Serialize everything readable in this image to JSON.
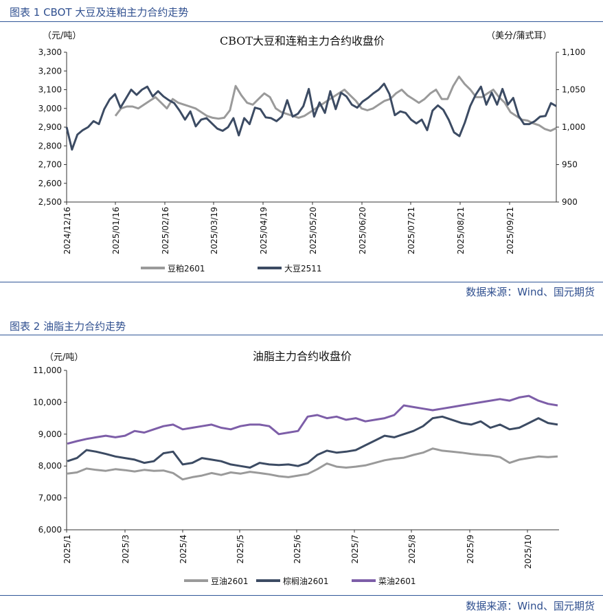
{
  "figure1": {
    "caption": "图表 1 CBOT 大豆及连粕主力合约走势",
    "source": "数据来源：Wind、国元期货",
    "chart_data": {
      "type": "line",
      "title": "CBOT大豆和连粕主力合约收盘价",
      "left_unit": "（元/吨）",
      "right_unit": "（美分/蒲式耳）",
      "left_ylim": [
        2500,
        3300
      ],
      "left_ticks": [
        "2,500",
        "2,600",
        "2,700",
        "2,800",
        "2,900",
        "3,000",
        "3,100",
        "3,200",
        "3,300"
      ],
      "right_ylim": [
        900,
        1100
      ],
      "right_ticks": [
        "900",
        "950",
        "1,000",
        "1,050",
        "1,100"
      ],
      "x_ticks": [
        "2024/12/16",
        "2025/01/16",
        "2025/02/16",
        "2025/03/19",
        "2025/04/19",
        "2025/05/20",
        "2025/06/20",
        "2025/07/21",
        "2025/08/21",
        "2025/09/21"
      ],
      "legend": "bottom",
      "grid": false,
      "series": [
        {
          "name": "豆粕2601",
          "axis": "left",
          "color": "#9a9a9a",
          "values": [
            2960,
            3000,
            3010,
            3010,
            3000,
            3020,
            3040,
            3060,
            3030,
            3000,
            3050,
            3030,
            3020,
            3010,
            3000,
            2980,
            2960,
            2950,
            2945,
            2950,
            2990,
            3120,
            3070,
            3030,
            3020,
            3050,
            3080,
            3060,
            3000,
            2980,
            2970,
            2960,
            2950,
            2960,
            2980,
            3000,
            3020,
            3040,
            3060,
            3080,
            3100,
            3070,
            3040,
            3000,
            2990,
            3000,
            3020,
            3040,
            3050,
            3080,
            3100,
            3070,
            3050,
            3030,
            3050,
            3080,
            3100,
            3050,
            3050,
            3120,
            3170,
            3130,
            3100,
            3060,
            3060,
            3080,
            3100,
            3060,
            3030,
            2980,
            2960,
            2940,
            2935,
            2920,
            2910,
            2890,
            2880,
            2895
          ]
        },
        {
          "name": "大豆2511",
          "axis": "right",
          "color": "#3c4b63",
          "values": [
            1000,
            970,
            990,
            996,
            1000,
            1008,
            1004,
            1024,
            1037,
            1044,
            1026,
            1038,
            1050,
            1043,
            1050,
            1054,
            1041,
            1048,
            1041,
            1036,
            1032,
            1022,
            1010,
            1021,
            1001,
            1010,
            1012,
            1005,
            998,
            995,
            1000,
            1012,
            989,
            1012,
            1004,
            1026,
            1024,
            1013,
            1012,
            1008,
            1014,
            1036,
            1014,
            1018,
            1028,
            1051,
            1014,
            1033,
            1019,
            1048,
            1024,
            1046,
            1041,
            1030,
            1026,
            1034,
            1039,
            1045,
            1050,
            1058,
            1044,
            1016,
            1021,
            1019,
            1010,
            1005,
            1010,
            996,
            1022,
            1029,
            1023,
            1010,
            993,
            988,
            1006,
            1028,
            1043,
            1054,
            1030,
            1046,
            1030,
            1051,
            1030,
            1039,
            1015,
            1004,
            1004,
            1008,
            1014,
            1015,
            1032,
            1028
          ]
        }
      ]
    }
  },
  "figure2": {
    "caption": "图表 2 油脂主力合约走势",
    "source": "数据来源：Wind、国元期货",
    "chart_data": {
      "type": "line",
      "title": "油脂主力合约收盘价",
      "ylabel": "（元/吨）",
      "ylim": [
        6000,
        11000
      ],
      "y_ticks": [
        "6,000",
        "7,000",
        "8,000",
        "9,000",
        "10,000",
        "11,000"
      ],
      "x_ticks": [
        "2025/1",
        "2025/3",
        "2025/4",
        "2025/5",
        "2025/6",
        "2025/7",
        "2025/8",
        "2025/9",
        "2025/10"
      ],
      "legend": "bottom",
      "grid": false,
      "series": [
        {
          "name": "豆油2601",
          "color": "#9a9a9a",
          "values": [
            7760,
            7800,
            7920,
            7880,
            7850,
            7900,
            7870,
            7830,
            7880,
            7850,
            7860,
            7780,
            7580,
            7650,
            7700,
            7780,
            7720,
            7800,
            7760,
            7820,
            7780,
            7740,
            7680,
            7650,
            7700,
            7750,
            7900,
            8080,
            7980,
            7950,
            7980,
            8020,
            8100,
            8180,
            8230,
            8260,
            8350,
            8420,
            8550,
            8480,
            8450,
            8420,
            8380,
            8350,
            8330,
            8280,
            8100,
            8200,
            8250,
            8300,
            8280,
            8300
          ]
        },
        {
          "name": "棕榈油2601",
          "color": "#3c4b63",
          "values": [
            8150,
            8250,
            8500,
            8450,
            8380,
            8300,
            8250,
            8200,
            8100,
            8150,
            8400,
            8450,
            8050,
            8100,
            8250,
            8200,
            8150,
            8050,
            8000,
            7950,
            8100,
            8050,
            8030,
            8050,
            8000,
            8100,
            8350,
            8480,
            8420,
            8450,
            8500,
            8650,
            8800,
            8950,
            8900,
            9000,
            9100,
            9250,
            9500,
            9550,
            9450,
            9350,
            9300,
            9400,
            9200,
            9300,
            9150,
            9200,
            9350,
            9500,
            9350,
            9300
          ]
        },
        {
          "name": "菜油2601",
          "color": "#7d5ea8",
          "values": [
            8700,
            8780,
            8850,
            8900,
            8950,
            8900,
            8950,
            9100,
            9050,
            9150,
            9250,
            9300,
            9150,
            9200,
            9250,
            9300,
            9200,
            9150,
            9250,
            9300,
            9300,
            9250,
            9000,
            9050,
            9100,
            9550,
            9600,
            9500,
            9550,
            9450,
            9500,
            9400,
            9450,
            9500,
            9600,
            9900,
            9850,
            9800,
            9750,
            9800,
            9850,
            9900,
            9950,
            10000,
            10050,
            10100,
            10050,
            10150,
            10200,
            10050,
            9950,
            9900
          ]
        }
      ]
    }
  }
}
